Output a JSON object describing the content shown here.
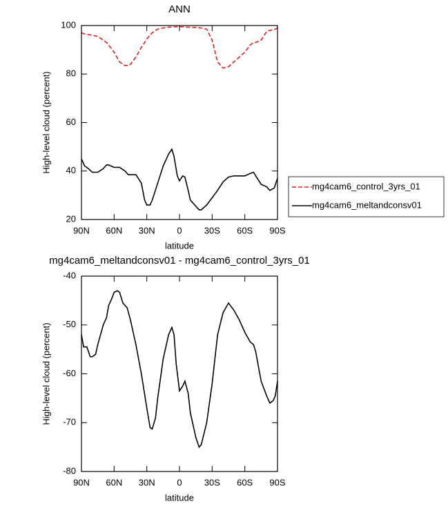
{
  "chart_data": [
    {
      "type": "line",
      "title": "ANN",
      "xlabel": "latitude",
      "ylabel": "High-level cloud (percent)",
      "x": [
        90,
        87,
        85,
        80,
        75,
        70,
        67,
        65,
        60,
        55,
        50,
        47,
        45,
        40,
        35,
        32,
        30,
        27,
        25,
        20,
        15,
        10,
        7,
        5,
        2,
        0,
        -3,
        -5,
        -8,
        -10,
        -15,
        -18,
        -20,
        -25,
        -30,
        -35,
        -40,
        -45,
        -50,
        -55,
        -60,
        -65,
        -68,
        -70,
        -75,
        -80,
        -83,
        -87,
        -90
      ],
      "series": [
        {
          "name": "mg4cam6_control_3yrs_01",
          "color": "#e41a1c",
          "dash": true,
          "values": [
            97,
            96.5,
            96.3,
            96,
            95.5,
            94,
            93,
            92,
            89,
            85,
            83.5,
            83.5,
            84,
            87,
            91,
            93,
            94.5,
            96,
            97,
            98.5,
            99,
            99.3,
            99.4,
            99.5,
            99.5,
            99.5,
            99.5,
            99.4,
            99.3,
            99.3,
            99.2,
            99.1,
            99,
            98.5,
            94,
            85,
            82.5,
            83,
            85,
            87,
            89,
            92,
            93,
            93,
            94,
            97.5,
            98,
            98.3,
            99
          ]
        },
        {
          "name": "mg4cam6_meltandconsv01",
          "color": "#000000",
          "dash": false,
          "values": [
            45,
            42,
            41.5,
            39.5,
            39.5,
            41,
            42.5,
            42.5,
            41.5,
            41.5,
            40,
            38.5,
            38.5,
            38.5,
            35,
            28,
            26,
            26,
            28,
            35,
            42,
            47,
            49,
            46,
            38,
            36,
            38,
            37.5,
            32,
            28,
            25.5,
            24,
            24,
            26,
            29,
            32,
            35.5,
            37.5,
            38,
            38,
            38,
            39,
            39.5,
            38,
            34.5,
            33.5,
            32,
            33,
            37
          ]
        }
      ],
      "xlim": [
        90,
        -90
      ],
      "ylim": [
        20,
        100
      ],
      "xticks": [
        {
          "value": 90,
          "label": "90N"
        },
        {
          "value": 60,
          "label": "60N"
        },
        {
          "value": 30,
          "label": "30N"
        },
        0,
        {
          "value": -30,
          "label": "30S"
        },
        {
          "value": -60,
          "label": "60S"
        },
        {
          "value": -90,
          "label": "90S"
        }
      ],
      "yticks": [
        20,
        40,
        60,
        80,
        100
      ],
      "legend": "right"
    },
    {
      "type": "line",
      "title": "mg4cam6_meltandconsv01 - mg4cam6_control_3yrs_01",
      "xlabel": "latitude",
      "ylabel": "High-level cloud (percent)",
      "x": [
        90,
        88,
        85,
        82,
        80,
        77,
        75,
        70,
        67,
        65,
        62,
        60,
        57,
        55,
        52,
        48,
        45,
        40,
        35,
        30,
        27,
        25,
        22,
        20,
        15,
        10,
        7,
        5,
        3,
        0,
        -3,
        -5,
        -8,
        -10,
        -15,
        -18,
        -20,
        -25,
        -30,
        -35,
        -40,
        -45,
        -50,
        -55,
        -60,
        -65,
        -68,
        -70,
        -75,
        -80,
        -83,
        -86,
        -88,
        -90
      ],
      "series": [
        {
          "color": "#000000",
          "dash": false,
          "values": [
            -52,
            -54.5,
            -54.5,
            -56.5,
            -56.5,
            -56,
            -54,
            -50,
            -48.5,
            -46,
            -44.5,
            -43.3,
            -43,
            -43.3,
            -45.5,
            -46.5,
            -49,
            -54,
            -60,
            -67,
            -71,
            -71.3,
            -69,
            -65,
            -57,
            -52,
            -50.5,
            -52,
            -58,
            -63.5,
            -62.5,
            -61.5,
            -64,
            -68,
            -73,
            -75,
            -74.5,
            -70,
            -62,
            -52,
            -47.5,
            -45.5,
            -47,
            -49,
            -51.5,
            -53.5,
            -54,
            -55.5,
            -61.5,
            -64.5,
            -66,
            -65.5,
            -64.5,
            -61.5
          ]
        }
      ],
      "xlim": [
        90,
        -90
      ],
      "ylim": [
        -80,
        -40
      ],
      "xticks": [
        {
          "value": 90,
          "label": "90N"
        },
        {
          "value": 60,
          "label": "60N"
        },
        {
          "value": 30,
          "label": "30N"
        },
        0,
        {
          "value": -30,
          "label": "30S"
        },
        {
          "value": -60,
          "label": "60S"
        },
        {
          "value": -90,
          "label": "90S"
        }
      ],
      "yticks": [
        -80,
        -70,
        -60,
        -50,
        -40
      ]
    }
  ]
}
